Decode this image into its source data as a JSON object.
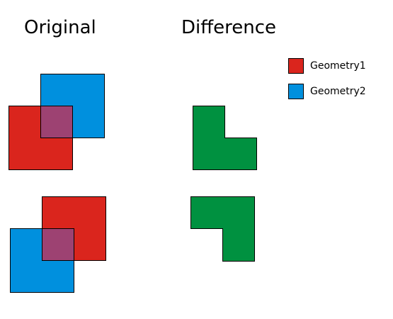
{
  "titles": {
    "original": "Original",
    "difference": "Difference"
  },
  "legend": [
    {
      "label": "Geometry1",
      "color": "#da251d"
    },
    {
      "label": "Geometry2",
      "color": "#0090de"
    }
  ],
  "colors": {
    "geometry1": "#da251d",
    "geometry2": "#0090de",
    "overlap": "#9d4272",
    "difference": "#009140",
    "outline": "#000000"
  }
}
